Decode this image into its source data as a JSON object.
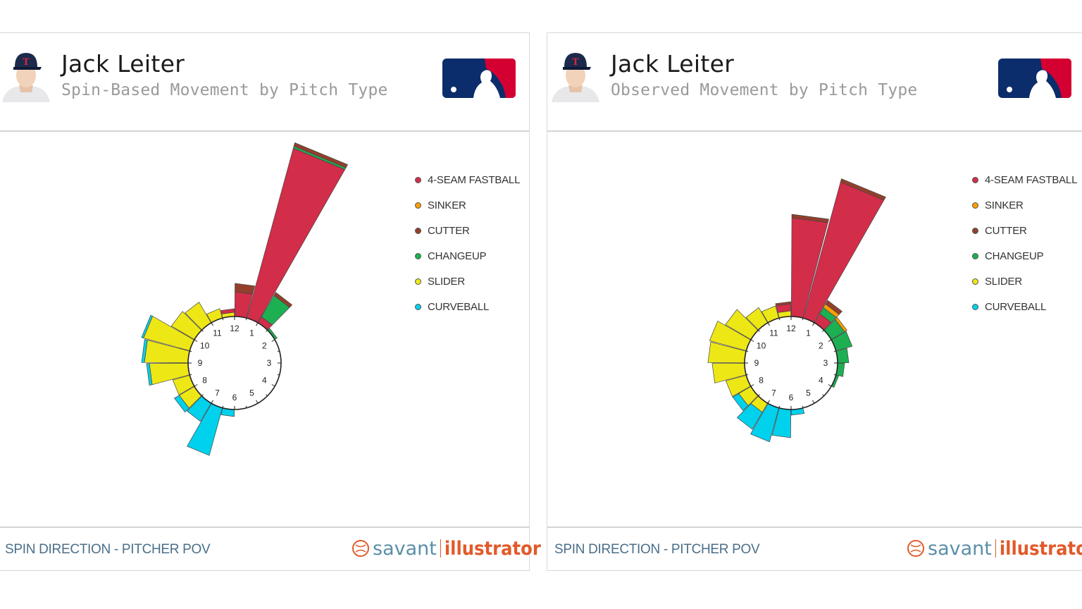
{
  "colors": {
    "4-SEAM FASTBALL": "#d22d49",
    "SINKER": "#fe9d00",
    "CUTTER": "#933f2c",
    "CHANGEUP": "#1db053",
    "SLIDER": "#eee716",
    "CURVEBALL": "#00d1ed"
  },
  "legend": [
    "4-SEAM FASTBALL",
    "SINKER",
    "CUTTER",
    "CHANGEUP",
    "SLIDER",
    "CURVEBALL"
  ],
  "panels": [
    {
      "player": "Jack Leiter",
      "subtitle": "Spin-Based Movement by Pitch Type",
      "footer": "SPIN DIRECTION - PITCHER POV",
      "brand_left": "savant",
      "brand_right": "illustrator"
    },
    {
      "player": "Jack Leiter",
      "subtitle": "Observed Movement by Pitch Type",
      "footer": "SPIN DIRECTION - PITCHER POV",
      "brand_left": "savant",
      "brand_right": "illustrator"
    }
  ],
  "chart_data": [
    {
      "type": "polar-bar",
      "title": "Spin-Based Movement by Pitch Type",
      "clock_labels": [
        "12",
        "1",
        "2",
        "3",
        "4",
        "5",
        "6",
        "7",
        "8",
        "9",
        "10",
        "11"
      ],
      "bin_hours": 0.5,
      "series": [
        {
          "name": "4-SEAM FASTBALL",
          "values": [
            [
              11.75,
              5
            ],
            [
              12.25,
              35
            ],
            [
              12.75,
              250
            ],
            [
              1.25,
              10
            ]
          ]
        },
        {
          "name": "CUTTER",
          "values": [
            [
              12.25,
              12
            ],
            [
              12.75,
              5
            ],
            [
              1.25,
              5
            ]
          ]
        },
        {
          "name": "CHANGEUP",
          "values": [
            [
              12.75,
              3
            ],
            [
              1.25,
              35
            ],
            [
              1.75,
              4
            ]
          ]
        },
        {
          "name": "SLIDER",
          "values": [
            [
              7.75,
              25
            ],
            [
              8.25,
              25
            ],
            [
              8.75,
              55
            ],
            [
              9.25,
              62
            ],
            [
              9.75,
              68
            ],
            [
              10.25,
              38
            ],
            [
              10.75,
              34
            ],
            [
              11.25,
              14
            ],
            [
              11.75,
              6
            ]
          ]
        },
        {
          "name": "CURVEBALL",
          "values": [
            [
              6.25,
              10
            ],
            [
              6.75,
              70
            ],
            [
              7.25,
              30
            ],
            [
              7.75,
              8
            ],
            [
              8.75,
              4
            ],
            [
              9.25,
              4
            ],
            [
              9.75,
              3
            ]
          ]
        }
      ]
    },
    {
      "type": "polar-bar",
      "title": "Observed Movement by Pitch Type",
      "clock_labels": [
        "12",
        "1",
        "2",
        "3",
        "4",
        "5",
        "6",
        "7",
        "8",
        "9",
        "10",
        "11"
      ],
      "bin_hours": 0.5,
      "series": [
        {
          "name": "4-SEAM FASTBALL",
          "values": [
            [
              11.75,
              10
            ],
            [
              12.25,
              140
            ],
            [
              12.75,
              200
            ],
            [
              1.25,
              15
            ]
          ]
        },
        {
          "name": "SINKER",
          "values": [
            [
              1.25,
              6
            ],
            [
              1.75,
              4
            ]
          ]
        },
        {
          "name": "CUTTER",
          "values": [
            [
              11.75,
              3
            ],
            [
              12.25,
              5
            ],
            [
              12.75,
              5
            ],
            [
              1.25,
              6
            ]
          ]
        },
        {
          "name": "CHANGEUP",
          "values": [
            [
              1.25,
              10
            ],
            [
              1.75,
              22
            ],
            [
              2.25,
              24
            ],
            [
              2.75,
              16
            ],
            [
              3.25,
              10
            ],
            [
              3.75,
              4
            ]
          ]
        },
        {
          "name": "SLIDER",
          "values": [
            [
              7.25,
              15
            ],
            [
              7.75,
              20
            ],
            [
              8.25,
              30
            ],
            [
              8.75,
              46
            ],
            [
              9.25,
              52
            ],
            [
              9.75,
              54
            ],
            [
              10.25,
              42
            ],
            [
              10.75,
              25
            ],
            [
              11.25,
              18
            ],
            [
              11.75,
              8
            ]
          ]
        },
        {
          "name": "CURVEBALL",
          "values": [
            [
              5.75,
              8
            ],
            [
              6.25,
              40
            ],
            [
              6.75,
              50
            ],
            [
              7.25,
              28
            ],
            [
              7.75,
              10
            ]
          ]
        }
      ]
    }
  ]
}
